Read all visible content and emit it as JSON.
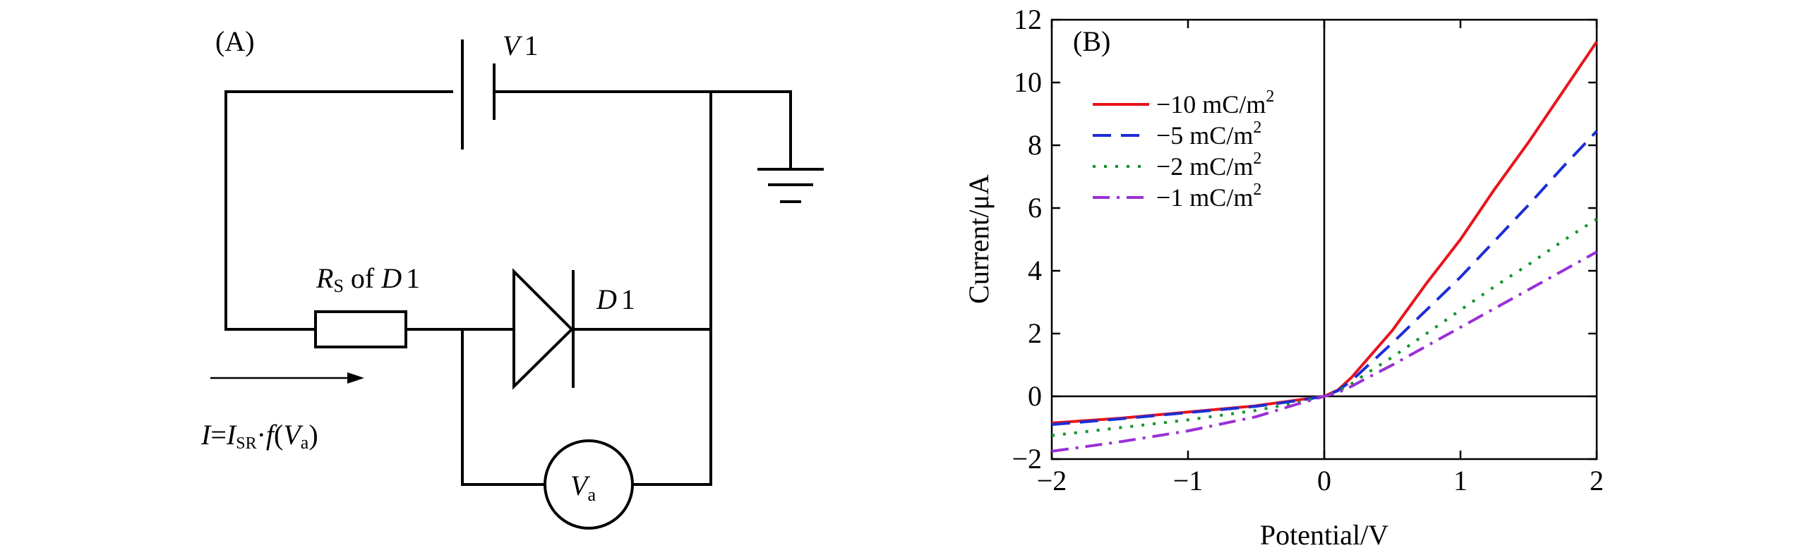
{
  "panel_a": {
    "label": "(A)",
    "source_label": "V",
    "source_index": "1",
    "resistor_label_R": "R",
    "resistor_label_sub": "S",
    "resistor_label_rest": " of ",
    "resistor_label_D": "D",
    "resistor_label_index": "1",
    "diode_label": "D",
    "diode_index": "1",
    "meter_label": "V",
    "meter_sub": "a",
    "current_I": "I",
    "current_eq": "=",
    "current_Isr": "I",
    "current_sr_sub": "SR",
    "current_dot": "·",
    "current_f": "f",
    "current_paren_open": "(",
    "current_Va": "V",
    "current_a_sub": "a",
    "current_paren_close": ")"
  },
  "panel_b": {
    "label": "(B)"
  },
  "chart_data": {
    "type": "line",
    "xlabel": "Potential/V",
    "ylabel": "Current/μA",
    "xlim": [
      -2,
      2
    ],
    "ylim": [
      -2,
      12
    ],
    "xticks": [
      -2,
      -1,
      0,
      1,
      2
    ],
    "xtick_labels": [
      "−2",
      "−1",
      "0",
      "1",
      "2"
    ],
    "yticks": [
      -2,
      0,
      2,
      4,
      6,
      8,
      10,
      12
    ],
    "ytick_labels": [
      "−2",
      "0",
      "2",
      "4",
      "6",
      "8",
      "10",
      "12"
    ],
    "legend_position": "top-left",
    "grid": false,
    "series": [
      {
        "name": "−10 mC/m",
        "name_sup": "2",
        "color": "#e8141c",
        "dash": "solid",
        "x": [
          -2,
          -1.5,
          -1,
          -0.5,
          -0.2,
          0,
          0.1,
          0.2,
          0.3,
          0.5,
          0.75,
          1,
          1.25,
          1.5,
          1.75,
          2
        ],
        "y": [
          -0.85,
          -0.7,
          -0.5,
          -0.3,
          -0.12,
          0,
          0.2,
          0.6,
          1.1,
          2.1,
          3.6,
          5.0,
          6.6,
          8.1,
          9.7,
          11.3
        ]
      },
      {
        "name": "−5 mC/m",
        "name_sup": "2",
        "color": "#1c2ed6",
        "dash": "dashed",
        "x": [
          -2,
          -1.5,
          -1,
          -0.5,
          -0.2,
          0,
          0.1,
          0.2,
          0.3,
          0.5,
          0.75,
          1,
          1.25,
          1.5,
          1.75,
          2
        ],
        "y": [
          -0.9,
          -0.72,
          -0.52,
          -0.32,
          -0.14,
          0,
          0.18,
          0.5,
          0.9,
          1.7,
          2.75,
          3.8,
          4.95,
          6.1,
          7.3,
          8.45
        ]
      },
      {
        "name": "−2 mC/m",
        "name_sup": "2",
        "color": "#13952a",
        "dash": "dotted",
        "x": [
          -2,
          -1.5,
          -1,
          -0.5,
          -0.2,
          0,
          0.1,
          0.2,
          0.3,
          0.5,
          0.75,
          1,
          1.25,
          1.5,
          1.75,
          2
        ],
        "y": [
          -1.25,
          -1.0,
          -0.75,
          -0.45,
          -0.2,
          0,
          0.15,
          0.4,
          0.7,
          1.25,
          2.0,
          2.75,
          3.5,
          4.2,
          4.95,
          5.65
        ]
      },
      {
        "name": "−1 mC/m",
        "name_sup": "2",
        "color": "#9b2fd6",
        "dash": "dashdot",
        "x": [
          -2,
          -1.5,
          -1,
          -0.5,
          -0.2,
          0,
          0.1,
          0.2,
          0.3,
          0.5,
          0.75,
          1,
          1.25,
          1.5,
          1.75,
          2
        ],
        "y": [
          -1.75,
          -1.45,
          -1.1,
          -0.65,
          -0.25,
          0,
          0.12,
          0.32,
          0.55,
          1.0,
          1.6,
          2.2,
          2.8,
          3.4,
          4.0,
          4.6
        ]
      }
    ]
  }
}
